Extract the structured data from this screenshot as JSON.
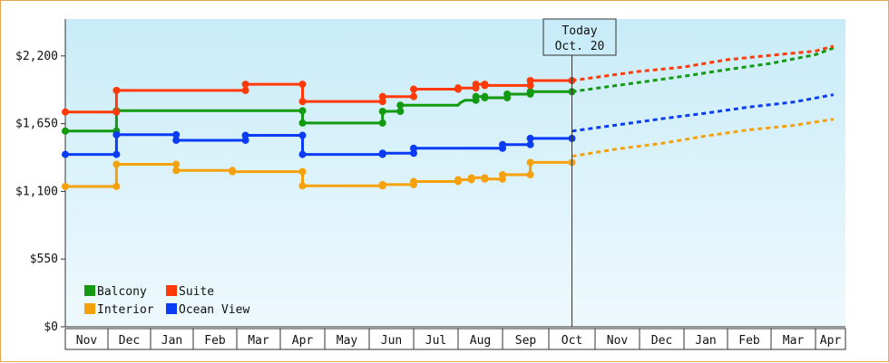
{
  "chart_data": {
    "type": "line",
    "x_axis_labels": [
      "Nov",
      "Dec",
      "Jan",
      "Feb",
      "Mar",
      "Apr",
      "May",
      "Jun",
      "Jul",
      "Aug",
      "Sep",
      "Oct",
      "Nov",
      "Dec",
      "Jan",
      "Feb",
      "Mar",
      "Apr"
    ],
    "y_ticks": [
      "$0",
      "$550",
      "$1,100",
      "$1,650",
      "$2,200"
    ],
    "ylim": [
      0,
      2500
    ],
    "today": {
      "line1": "Today",
      "line2": "Oct. 20"
    },
    "today_month_index": 11.5,
    "grid": false,
    "legend_placement": "bottom-left",
    "series": [
      {
        "name": "Balcony",
        "color": "#139a10",
        "history": [
          [
            0,
            1590
          ],
          [
            1.2,
            1590
          ],
          [
            1.2,
            1755
          ],
          [
            5.5,
            1755
          ],
          [
            5.5,
            1655
          ],
          [
            7.3,
            1655
          ],
          [
            7.3,
            1750
          ],
          [
            7.7,
            1750
          ],
          [
            7.7,
            1800
          ],
          [
            9.0,
            1800
          ],
          [
            9.05,
            1820
          ],
          [
            9.15,
            1840
          ],
          [
            9.4,
            1840
          ],
          [
            9.4,
            1870
          ],
          [
            9.6,
            1870
          ],
          [
            9.6,
            1860
          ],
          [
            10.1,
            1860
          ],
          [
            10.1,
            1890
          ],
          [
            10.6,
            1890
          ],
          [
            10.6,
            1910
          ],
          [
            11.5,
            1910
          ]
        ],
        "forecast": [
          [
            11.5,
            1910
          ],
          [
            13.0,
            1985
          ],
          [
            14.0,
            2035
          ],
          [
            15.0,
            2090
          ],
          [
            16.0,
            2140
          ],
          [
            17.0,
            2210
          ],
          [
            17.6,
            2265
          ]
        ]
      },
      {
        "name": "Suite",
        "color": "#ff3a07",
        "history": [
          [
            0,
            1745
          ],
          [
            1.2,
            1745
          ],
          [
            1.2,
            1920
          ],
          [
            4.2,
            1920
          ],
          [
            4.2,
            1970
          ],
          [
            5.5,
            1970
          ],
          [
            5.5,
            1830
          ],
          [
            7.3,
            1830
          ],
          [
            7.3,
            1870
          ],
          [
            8.0,
            1870
          ],
          [
            8.0,
            1930
          ],
          [
            9.0,
            1930
          ],
          [
            9.0,
            1940
          ],
          [
            9.4,
            1940
          ],
          [
            9.4,
            1970
          ],
          [
            9.6,
            1970
          ],
          [
            9.6,
            1960
          ],
          [
            10.6,
            1960
          ],
          [
            10.6,
            2000
          ],
          [
            11.5,
            2000
          ]
        ],
        "forecast": [
          [
            11.5,
            2000
          ],
          [
            13.0,
            2075
          ],
          [
            14.0,
            2110
          ],
          [
            15.0,
            2170
          ],
          [
            16.0,
            2205
          ],
          [
            17.0,
            2240
          ],
          [
            17.6,
            2280
          ]
        ]
      },
      {
        "name": "Interior",
        "color": "#f5a10c",
        "history": [
          [
            0,
            1140
          ],
          [
            1.2,
            1140
          ],
          [
            1.2,
            1320
          ],
          [
            2.6,
            1320
          ],
          [
            2.6,
            1270
          ],
          [
            3.9,
            1270
          ],
          [
            3.9,
            1260
          ],
          [
            5.5,
            1260
          ],
          [
            5.5,
            1145
          ],
          [
            7.3,
            1145
          ],
          [
            7.3,
            1155
          ],
          [
            8.0,
            1155
          ],
          [
            8.0,
            1180
          ],
          [
            9.0,
            1180
          ],
          [
            9.0,
            1195
          ],
          [
            9.3,
            1195
          ],
          [
            9.3,
            1210
          ],
          [
            9.6,
            1210
          ],
          [
            9.6,
            1200
          ],
          [
            10.0,
            1200
          ],
          [
            10.0,
            1235
          ],
          [
            10.6,
            1235
          ],
          [
            10.6,
            1335
          ],
          [
            11.5,
            1335
          ]
        ],
        "forecast": [
          [
            11.5,
            1385
          ],
          [
            12.5,
            1445
          ],
          [
            13.5,
            1490
          ],
          [
            14.5,
            1550
          ],
          [
            15.5,
            1600
          ],
          [
            16.5,
            1635
          ],
          [
            17.6,
            1685
          ]
        ]
      },
      {
        "name": "Ocean View",
        "color": "#0a3cf5",
        "history": [
          [
            0,
            1400
          ],
          [
            1.2,
            1400
          ],
          [
            1.2,
            1560
          ],
          [
            2.6,
            1560
          ],
          [
            2.6,
            1515
          ],
          [
            4.2,
            1515
          ],
          [
            4.2,
            1555
          ],
          [
            5.5,
            1555
          ],
          [
            5.5,
            1400
          ],
          [
            7.3,
            1400
          ],
          [
            7.3,
            1410
          ],
          [
            8.0,
            1410
          ],
          [
            8.0,
            1450
          ],
          [
            9.0,
            1450
          ],
          [
            9.3,
            1450
          ],
          [
            9.6,
            1450
          ],
          [
            10.0,
            1450
          ],
          [
            10.0,
            1480
          ],
          [
            10.6,
            1480
          ],
          [
            10.6,
            1530
          ],
          [
            11.5,
            1530
          ]
        ],
        "forecast": [
          [
            11.5,
            1590
          ],
          [
            12.5,
            1640
          ],
          [
            13.5,
            1690
          ],
          [
            14.5,
            1735
          ],
          [
            15.5,
            1785
          ],
          [
            16.5,
            1825
          ],
          [
            17.6,
            1885
          ]
        ]
      }
    ]
  }
}
